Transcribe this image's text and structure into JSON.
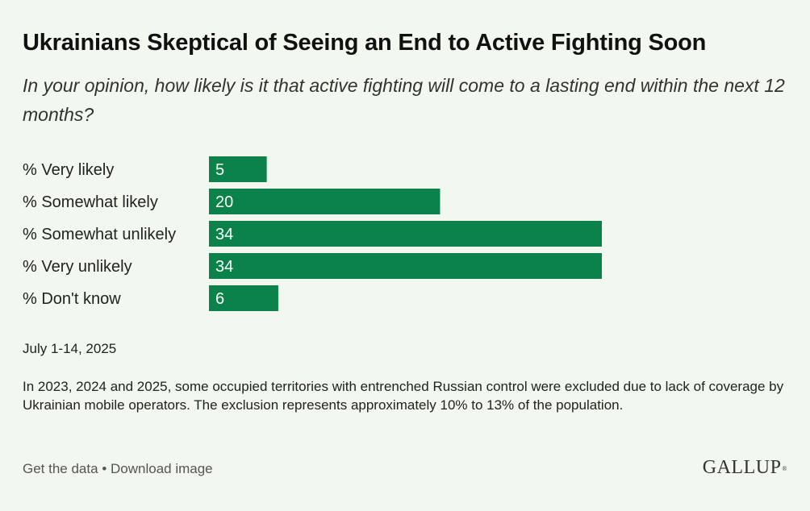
{
  "header": {
    "title": "Ukrainians Skeptical of Seeing an End to Active Fighting Soon",
    "subtitle": "In your opinion, how likely is it that active fighting will come to a lasting end within the next 12 months?"
  },
  "chart_data": {
    "type": "bar",
    "orientation": "horizontal",
    "categories": [
      "% Very likely",
      "% Somewhat likely",
      "% Somewhat unlikely",
      "% Very unlikely",
      "% Don't know"
    ],
    "values": [
      5,
      20,
      34,
      34,
      6
    ],
    "title": "Ukrainians Skeptical of Seeing an End to Active Fighting Soon",
    "xlabel": "",
    "ylabel": "",
    "xlim": [
      0,
      34
    ],
    "grid": false,
    "legend": "none",
    "bar_color": "#0a8249"
  },
  "date": "July 1-14, 2025",
  "note": "In 2023, 2024 and 2025, some occupied territories with entrenched Russian control were excluded due to lack of coverage by Ukrainian mobile operators. The exclusion represents approximately 10% to 13% of the population.",
  "footer": {
    "get_data": "Get the data",
    "separator": "•",
    "download": "Download image",
    "logo": "GALLUP",
    "logo_mark": "®"
  },
  "colors": {
    "background": "#f2f7ef",
    "bar": "#0a8249",
    "bar_text": "#ffffff"
  }
}
